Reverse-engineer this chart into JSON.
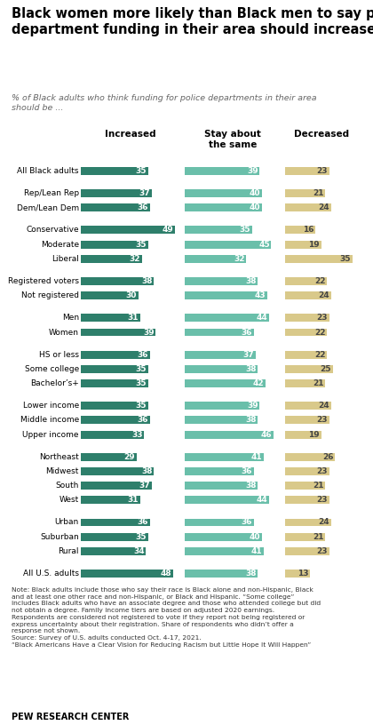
{
  "title": "Black women more likely than Black men to say police\ndepartment funding in their area should increase",
  "subtitle": "% of Black adults who think funding for police departments in their area\nshould be ...",
  "col_headers": [
    "Increased",
    "Stay about\nthe same",
    "Decreased"
  ],
  "categories": [
    "All Black adults",
    "Rep/Lean Rep",
    "Dem/Lean Dem",
    "Conservative",
    "Moderate",
    "Liberal",
    "Registered voters",
    "Not registered",
    "Men",
    "Women",
    "HS or less",
    "Some college",
    "Bachelor’s+",
    "Lower income",
    "Middle income",
    "Upper income",
    "Northeast",
    "Midwest",
    "South",
    "West",
    "Urban",
    "Suburban",
    "Rural",
    "All U.S. adults"
  ],
  "increased": [
    35,
    37,
    36,
    49,
    35,
    32,
    38,
    30,
    31,
    39,
    36,
    35,
    35,
    35,
    36,
    33,
    29,
    38,
    37,
    31,
    36,
    35,
    34,
    48
  ],
  "same": [
    39,
    40,
    40,
    35,
    45,
    32,
    38,
    43,
    44,
    36,
    37,
    38,
    42,
    39,
    38,
    46,
    41,
    36,
    38,
    44,
    36,
    40,
    41,
    38
  ],
  "decreased": [
    23,
    21,
    24,
    16,
    19,
    35,
    22,
    24,
    23,
    22,
    22,
    25,
    21,
    24,
    23,
    19,
    26,
    23,
    21,
    23,
    24,
    21,
    23,
    13
  ],
  "gap_after": [
    0,
    2,
    5,
    7,
    9,
    12,
    15,
    19,
    22
  ],
  "color_increased": "#2e7f6b",
  "color_same": "#6abfaa",
  "color_decreased": "#d9c98a",
  "note1": "Note: Black adults include those who say their race is Black alone and non-Hispanic, Black",
  "note2": "and at least one other race and non-Hispanic, or Black and Hispanic. “Some college”",
  "note3": "includes Black adults who have an associate degree and those who attended college but did",
  "note4": "not obtain a degree. Family income tiers are based on adjusted 2020 earnings.",
  "note5": "Respondents are considered not registered to vote if they report not being registered or",
  "note6": "express uncertainty about their registration. Share of respondents who didn’t offer a",
  "note7": "response not shown.",
  "note8": "Source: Survey of U.S. adults conducted Oct. 4-17, 2021.",
  "note9": "“Black Americans Have a Clear Vision for Reducing Racism but Little Hope It Will Happen”",
  "source_label": "PEW RESEARCH CENTER"
}
